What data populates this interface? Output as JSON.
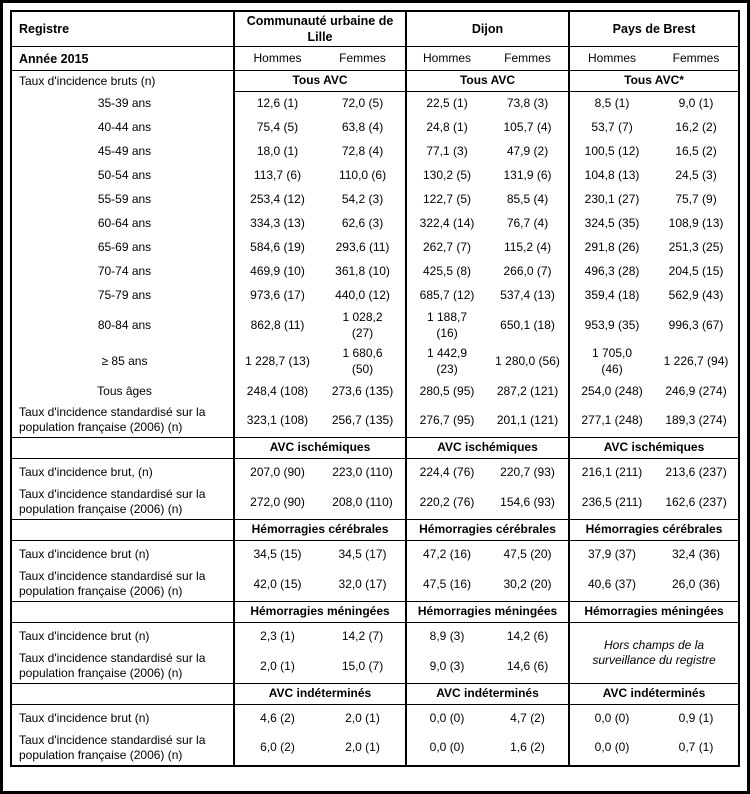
{
  "table": {
    "corner_label": "Registre",
    "year_label": "Année 2015",
    "regions": [
      "Communauté urbaine de\nLille",
      "Dijon",
      "Pays de Brest"
    ],
    "sex_labels": [
      "Hommes",
      "Femmes",
      "Hommes",
      "Femmes",
      "Hommes",
      "Femmes"
    ],
    "sections": [
      {
        "name": "tous-avc",
        "row_label": "Taux d'incidence bruts (n)",
        "group_headers": [
          "Tous AVC",
          "Tous AVC",
          "Tous AVC*"
        ],
        "label_no_bottom_border": true,
        "rows": [
          {
            "label": "35-39 ans",
            "align": "center",
            "values": [
              "12,6 (1)",
              "72,0 (5)",
              "22,5 (1)",
              "73,8 (3)",
              "8,5 (1)",
              "9,0 (1)"
            ]
          },
          {
            "label": "40-44 ans",
            "align": "center",
            "values": [
              "75,4 (5)",
              "63,8 (4)",
              "24,8 (1)",
              "105,7 (4)",
              "53,7 (7)",
              "16,2 (2)"
            ]
          },
          {
            "label": "45-49 ans",
            "align": "center",
            "values": [
              "18,0 (1)",
              "72,8 (4)",
              "77,1 (3)",
              "47,9 (2)",
              "100,5 (12)",
              "16,5 (2)"
            ]
          },
          {
            "label": "50-54 ans",
            "align": "center",
            "values": [
              "113,7 (6)",
              "110,0 (6)",
              "130,2 (5)",
              "131,9 (6)",
              "104,8 (13)",
              "24,5 (3)"
            ]
          },
          {
            "label": "55-59 ans",
            "align": "center",
            "values": [
              "253,4 (12)",
              "54,2 (3)",
              "122,7 (5)",
              "85,5 (4)",
              "230,1 (27)",
              "75,7 (9)"
            ]
          },
          {
            "label": "60-64 ans",
            "align": "center",
            "values": [
              "334,3 (13)",
              "62,6 (3)",
              "322,4 (14)",
              "76,7 (4)",
              "324,5 (35)",
              "108,9 (13)"
            ]
          },
          {
            "label": "65-69 ans",
            "align": "center",
            "values": [
              "584,6 (19)",
              "293,6 (11)",
              "262,7 (7)",
              "115,2 (4)",
              "291,8 (26)",
              "251,3 (25)"
            ]
          },
          {
            "label": "70-74 ans",
            "align": "center",
            "values": [
              "469,9 (10)",
              "361,8 (10)",
              "425,5 (8)",
              "266,0 (7)",
              "496,3 (28)",
              "204,5 (15)"
            ]
          },
          {
            "label": "75-79 ans",
            "align": "center",
            "values": [
              "973,6 (17)",
              "440,0 (12)",
              "685,7 (12)",
              "537,4 (13)",
              "359,4 (18)",
              "562,9 (43)"
            ]
          },
          {
            "label": "80-84 ans",
            "align": "center",
            "values": [
              "862,8 (11)",
              "1 028,2\n(27)",
              "1 188,7\n(16)",
              "650,1 (18)",
              "953,9 (35)",
              "996,3 (67)"
            ]
          },
          {
            "label": "≥ 85 ans",
            "align": "center",
            "values": [
              "1 228,7 (13)",
              "1 680,6\n(50)",
              "1 442,9\n(23)",
              "1 280,0 (56)",
              "1 705,0\n(46)",
              "1 226,7 (94)"
            ]
          },
          {
            "label": "Tous âges",
            "align": "center",
            "values": [
              "248,4 (108)",
              "273,6 (135)",
              "280,5 (95)",
              "287,2 (121)",
              "254,0 (248)",
              "246,9 (274)"
            ]
          },
          {
            "label": "Taux d'incidence standardisé sur la\npopulation française (2006) (n)",
            "align": "left",
            "values": [
              "323,1 (108)",
              "256,7 (135)",
              "276,7 (95)",
              "201,1 (121)",
              "277,1 (248)",
              "189,3 (274)"
            ]
          }
        ]
      },
      {
        "name": "avc-ischemiques",
        "row_label": "",
        "group_headers": [
          "AVC ischémiques",
          "AVC ischémiques",
          "AVC ischémiques"
        ],
        "rows": [
          {
            "label": "Taux d'incidence brut, (n)",
            "align": "left",
            "values": [
              "207,0 (90)",
              "223,0 (110)",
              "224,4 (76)",
              "220,7 (93)",
              "216,1 (211)",
              "213,6 (237)"
            ]
          },
          {
            "label": "Taux d'incidence standardisé sur la\npopulation française (2006) (n)",
            "align": "left",
            "values": [
              "272,0 (90)",
              "208,0 (110)",
              "220,2 (76)",
              "154,6 (93)",
              "236,5 (211)",
              "162,6 (237)"
            ]
          }
        ]
      },
      {
        "name": "hemorragies-cerebrales",
        "row_label": "",
        "group_headers": [
          "Hémorragies cérébrales",
          "Hémorragies cérébrales",
          "Hémorragies cérébrales"
        ],
        "rows": [
          {
            "label": "Taux d'incidence brut (n)",
            "align": "left",
            "values": [
              "34,5 (15)",
              "34,5 (17)",
              "47,2 (16)",
              "47,5 (20)",
              "37,9 (37)",
              "32,4 (36)"
            ]
          },
          {
            "label": "Taux d'incidence standardisé sur la\npopulation française (2006) (n)",
            "align": "left",
            "values": [
              "42,0 (15)",
              "32,0 (17)",
              "47,5 (16)",
              "30,2 (20)",
              "40,6 (37)",
              "26,0 (36)"
            ]
          }
        ]
      },
      {
        "name": "hemorragies-meningees",
        "row_label": "",
        "group_headers": [
          "Hémorragies méningées",
          "Hémorragies méningées",
          "Hémorragies méningées"
        ],
        "note": "Hors champs de la\nsurveillance du registre",
        "rows": [
          {
            "label": "Taux d'incidence brut (n)",
            "align": "left",
            "values": [
              "2,3 (1)",
              "14,2 (7)",
              "8,9 (3)",
              "14,2 (6)"
            ]
          },
          {
            "label": "Taux d'incidence standardisé sur la\npopulation française (2006) (n)",
            "align": "left",
            "values": [
              "2,0 (1)",
              "15,0 (7)",
              "9,0 (3)",
              "14,6 (6)"
            ]
          }
        ]
      },
      {
        "name": "avc-indetermines",
        "row_label": "",
        "group_headers": [
          "AVC indéterminés",
          "AVC indéterminés",
          "AVC indéterminés"
        ],
        "rows": [
          {
            "label": "Taux d'incidence brut (n)",
            "align": "left",
            "values": [
              "4,6 (2)",
              "2,0 (1)",
              "0,0 (0)",
              "4,7 (2)",
              "0,0 (0)",
              "0,9 (1)"
            ]
          },
          {
            "label": "Taux d'incidence standardisé sur la\npopulation française (2006) (n)",
            "align": "left",
            "values": [
              "6,0 (2)",
              "2,0 (1)",
              "0,0 (0)",
              "1,6 (2)",
              "0,0 (0)",
              "0,7 (1)"
            ]
          }
        ]
      }
    ]
  }
}
